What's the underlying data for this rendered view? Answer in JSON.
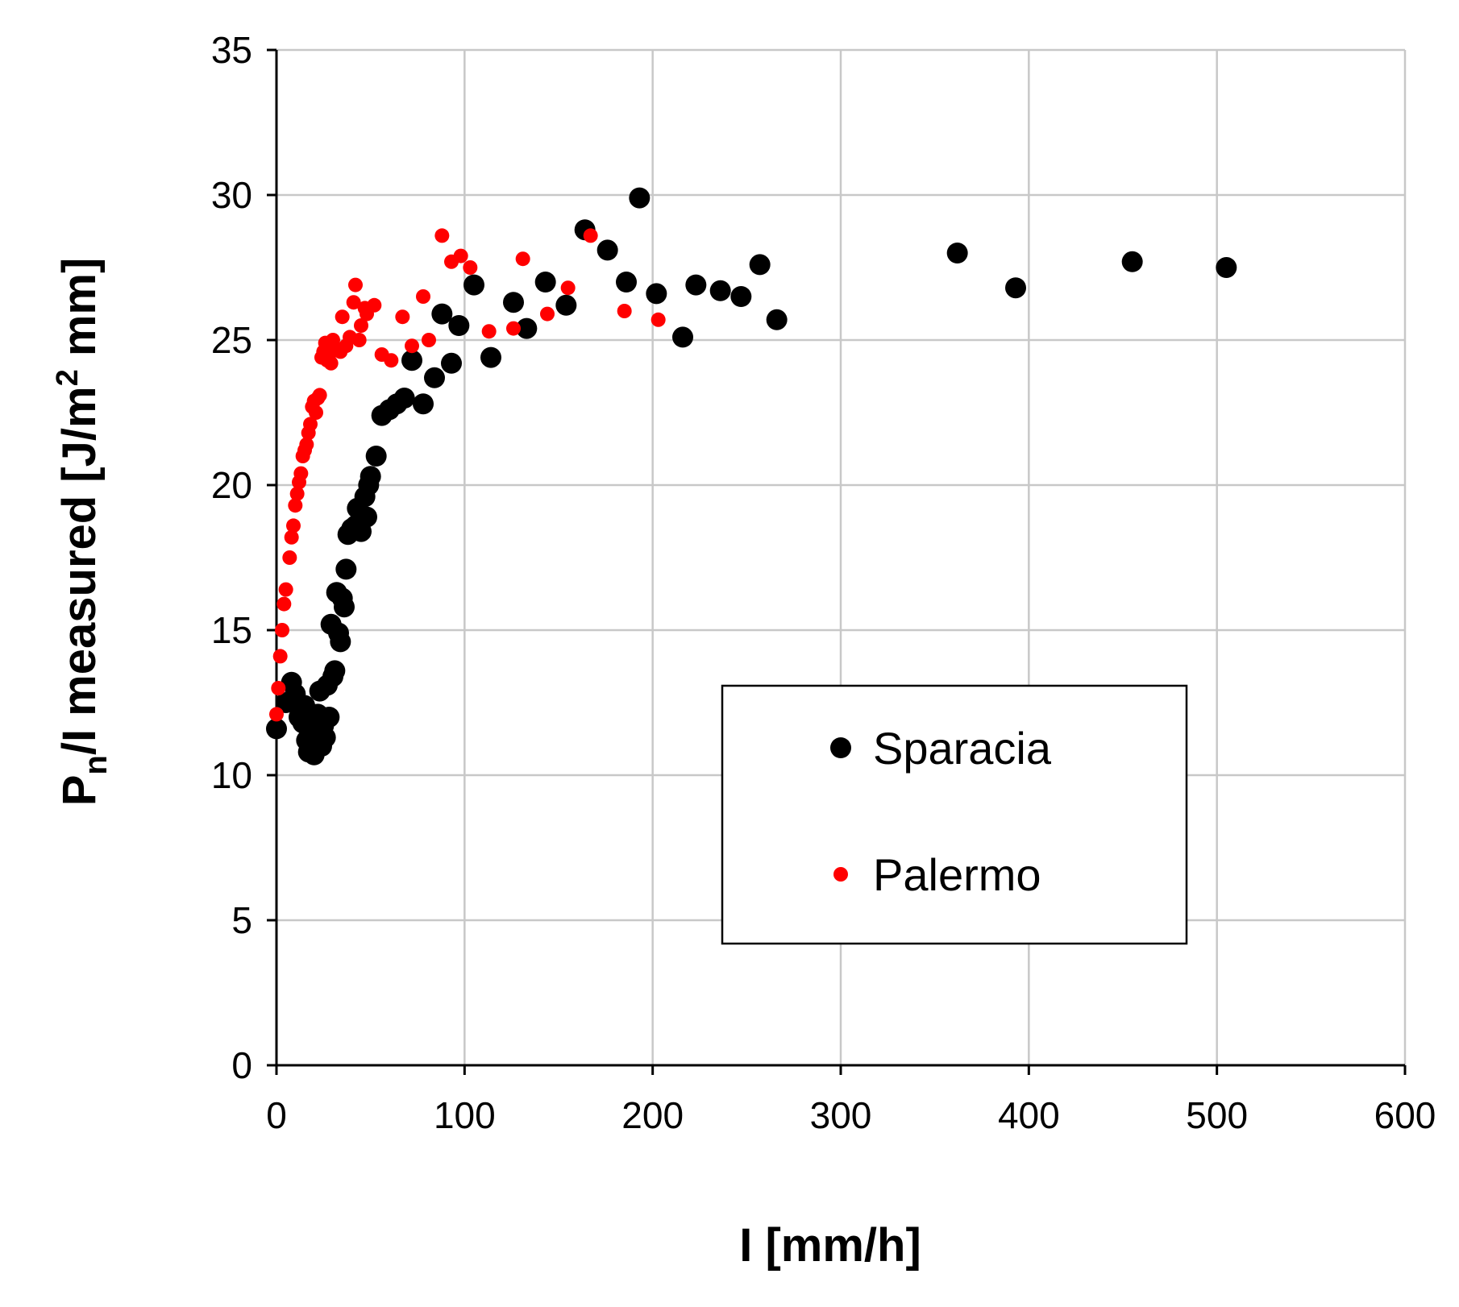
{
  "chart_data": {
    "type": "scatter",
    "title": "",
    "xlabel": "I [mm/h]",
    "ylabel": "Pn/I measured [J/m2 mm]",
    "ylabel_parts": {
      "p": "P",
      "sub": "n",
      "mid": "/I measured [J/m",
      "sup": "2",
      "end": " mm]"
    },
    "xlim": [
      0,
      600
    ],
    "ylim": [
      0,
      35
    ],
    "xticks": [
      0,
      100,
      200,
      300,
      400,
      500,
      600
    ],
    "yticks": [
      0,
      5,
      10,
      15,
      20,
      25,
      30,
      35
    ],
    "grid": true,
    "legend_position": "center-right",
    "series": [
      {
        "name": "Sparacia",
        "color": "#000000",
        "marker": "large-dot",
        "points": [
          [
            0,
            11.6
          ],
          [
            5,
            12.5
          ],
          [
            8,
            13.2
          ],
          [
            10,
            12.8
          ],
          [
            12,
            12.0
          ],
          [
            14,
            11.8
          ],
          [
            15,
            12.4
          ],
          [
            16,
            11.2
          ],
          [
            17,
            10.8
          ],
          [
            18,
            11.5
          ],
          [
            19,
            11.3
          ],
          [
            20,
            10.7
          ],
          [
            22,
            12.1
          ],
          [
            23,
            12.9
          ],
          [
            24,
            11.0
          ],
          [
            25,
            11.7
          ],
          [
            26,
            11.3
          ],
          [
            27,
            13.1
          ],
          [
            28,
            12.0
          ],
          [
            29,
            15.2
          ],
          [
            30,
            13.4
          ],
          [
            31,
            13.6
          ],
          [
            32,
            16.3
          ],
          [
            33,
            14.9
          ],
          [
            34,
            14.6
          ],
          [
            35,
            16.1
          ],
          [
            36,
            15.8
          ],
          [
            37,
            17.1
          ],
          [
            38,
            18.3
          ],
          [
            40,
            18.5
          ],
          [
            42,
            18.6
          ],
          [
            43,
            19.2
          ],
          [
            45,
            18.4
          ],
          [
            47,
            19.6
          ],
          [
            48,
            18.9
          ],
          [
            49,
            20.0
          ],
          [
            50,
            20.3
          ],
          [
            53,
            21.0
          ],
          [
            56,
            22.4
          ],
          [
            60,
            22.6
          ],
          [
            64,
            22.8
          ],
          [
            68,
            23.0
          ],
          [
            72,
            24.3
          ],
          [
            78,
            22.8
          ],
          [
            84,
            23.7
          ],
          [
            88,
            25.9
          ],
          [
            93,
            24.2
          ],
          [
            97,
            25.5
          ],
          [
            105,
            26.9
          ],
          [
            114,
            24.4
          ],
          [
            126,
            26.3
          ],
          [
            133,
            25.4
          ],
          [
            143,
            27.0
          ],
          [
            154,
            26.2
          ],
          [
            164,
            28.8
          ],
          [
            176,
            28.1
          ],
          [
            186,
            27.0
          ],
          [
            193,
            29.9
          ],
          [
            202,
            26.6
          ],
          [
            216,
            25.1
          ],
          [
            223,
            26.9
          ],
          [
            236,
            26.7
          ],
          [
            247,
            26.5
          ],
          [
            257,
            27.6
          ],
          [
            266,
            25.7
          ],
          [
            362,
            28.0
          ],
          [
            393,
            26.8
          ],
          [
            455,
            27.7
          ],
          [
            505,
            27.5
          ]
        ]
      },
      {
        "name": "Palermo",
        "color": "#ff0000",
        "marker": "small-dot",
        "points": [
          [
            0,
            12.1
          ],
          [
            1,
            13.0
          ],
          [
            2,
            14.1
          ],
          [
            3,
            15.0
          ],
          [
            4,
            15.9
          ],
          [
            5,
            16.4
          ],
          [
            7,
            17.5
          ],
          [
            8,
            18.2
          ],
          [
            9,
            18.6
          ],
          [
            10,
            19.3
          ],
          [
            11,
            19.7
          ],
          [
            12,
            20.1
          ],
          [
            13,
            20.4
          ],
          [
            14,
            21.0
          ],
          [
            15,
            21.2
          ],
          [
            16,
            21.4
          ],
          [
            17,
            21.8
          ],
          [
            18,
            22.1
          ],
          [
            19,
            22.7
          ],
          [
            20,
            22.9
          ],
          [
            21,
            22.5
          ],
          [
            22,
            23.0
          ],
          [
            23,
            23.1
          ],
          [
            24,
            24.4
          ],
          [
            25,
            24.6
          ],
          [
            26,
            24.9
          ],
          [
            27,
            24.3
          ],
          [
            28,
            24.5
          ],
          [
            29,
            24.2
          ],
          [
            30,
            25.0
          ],
          [
            32,
            24.7
          ],
          [
            34,
            24.6
          ],
          [
            35,
            25.8
          ],
          [
            37,
            24.8
          ],
          [
            39,
            25.1
          ],
          [
            41,
            26.3
          ],
          [
            42,
            26.9
          ],
          [
            44,
            25.0
          ],
          [
            45,
            25.5
          ],
          [
            47,
            26.1
          ],
          [
            48,
            25.9
          ],
          [
            52,
            26.2
          ],
          [
            56,
            24.5
          ],
          [
            61,
            24.3
          ],
          [
            67,
            25.8
          ],
          [
            72,
            24.8
          ],
          [
            78,
            26.5
          ],
          [
            81,
            25.0
          ],
          [
            88,
            28.6
          ],
          [
            93,
            27.7
          ],
          [
            98,
            27.9
          ],
          [
            103,
            27.5
          ],
          [
            113,
            25.3
          ],
          [
            126,
            25.4
          ],
          [
            131,
            27.8
          ],
          [
            144,
            25.9
          ],
          [
            155,
            26.8
          ],
          [
            167,
            28.6
          ],
          [
            185,
            26.0
          ],
          [
            203,
            25.7
          ]
        ]
      }
    ]
  }
}
